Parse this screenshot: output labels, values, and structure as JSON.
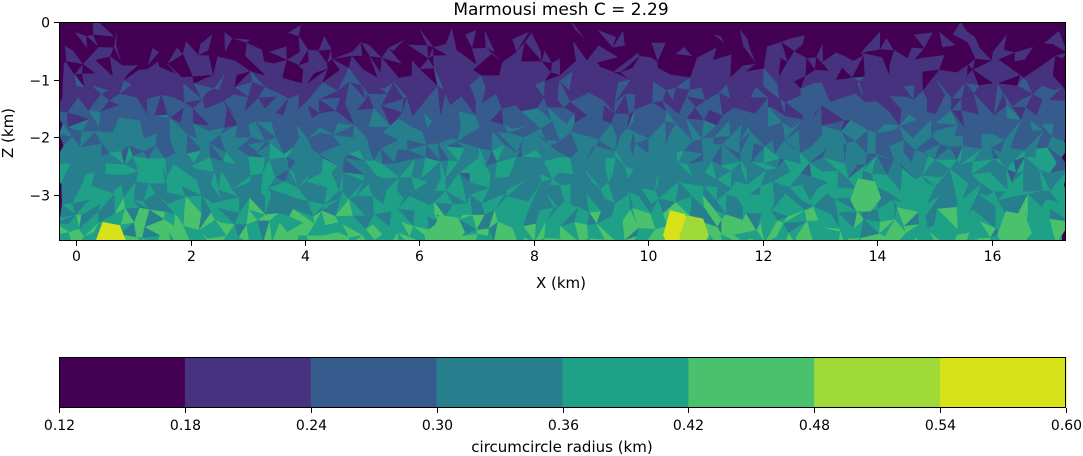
{
  "chart_data": {
    "type": "heatmap",
    "title": "Marmousi mesh C = 2.29",
    "xlabel": "X (km)",
    "ylabel": "Z (km)",
    "xlim": [
      -0.3,
      17.3
    ],
    "ylim": [
      -3.8,
      0
    ],
    "xticks": [
      0,
      2,
      4,
      6,
      8,
      10,
      12,
      14,
      16
    ],
    "yticks": [
      0,
      -1,
      -2,
      -3
    ],
    "grid": false,
    "colormap": "viridis",
    "colorbar": {
      "label": "circumcircle radius (km)",
      "orientation": "horizontal",
      "levels": [
        0.12,
        0.18,
        0.24,
        0.3,
        0.36,
        0.42,
        0.48,
        0.54,
        0.6
      ],
      "tick_labels": [
        "0.12",
        "0.18",
        "0.24",
        "0.30",
        "0.36",
        "0.42",
        "0.48",
        "0.54",
        "0.60"
      ],
      "colors": [
        "#440154",
        "#46327e",
        "#365c8d",
        "#277f8e",
        "#1fa187",
        "#4ac16d",
        "#a0da39",
        "#d8e219"
      ]
    },
    "depth_profile": {
      "z": [
        0,
        -0.5,
        -1.0,
        -1.5,
        -2.0,
        -2.5,
        -3.0,
        -3.5,
        -3.8
      ],
      "radius": [
        0.15,
        0.17,
        0.21,
        0.25,
        0.3,
        0.34,
        0.36,
        0.4,
        0.42
      ]
    },
    "highlights": [
      {
        "x": 10.5,
        "z": -3.6,
        "radius": 0.57
      },
      {
        "x": 10.8,
        "z": -3.65,
        "radius": 0.5
      },
      {
        "x": 0.6,
        "z": -3.75,
        "radius": 0.56
      },
      {
        "x": 13.8,
        "z": -3.0,
        "radius": 0.45
      },
      {
        "x": 16.4,
        "z": -3.6,
        "radius": 0.43
      },
      {
        "x": 6.5,
        "z": -3.6,
        "radius": 0.43
      }
    ]
  }
}
